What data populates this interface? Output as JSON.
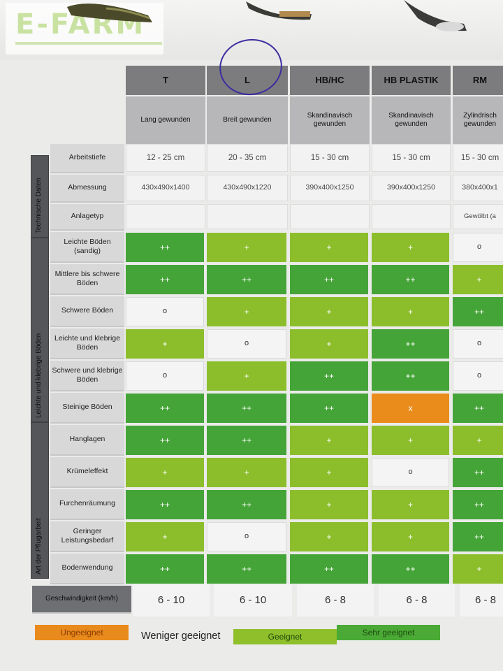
{
  "logo": {
    "text": "E-FARM"
  },
  "columns": [
    {
      "code": "T",
      "type": "Lang gewunden"
    },
    {
      "code": "L",
      "type": "Breit gewunden"
    },
    {
      "code": "HB/HC",
      "type": "Skandinavisch\ngewunden"
    },
    {
      "code": "HB PLASTIK",
      "type": "Skandinavisch\ngewunden"
    },
    {
      "code": "RM",
      "type": "Zylindrisch\ngewunden"
    }
  ],
  "groups": {
    "technical": "Technische Daten",
    "soils": "Leichte und klebrige Böden",
    "ploughing": "Art der Pflugarbeit"
  },
  "tech_rows": [
    {
      "label": "Arbeitstiefe",
      "values": [
        "12 - 25 cm",
        "20 - 35 cm",
        "15 - 30 cm",
        "15 - 30 cm",
        "15 - 30 cm"
      ]
    },
    {
      "label": "Abmessung",
      "values": [
        "430x490x1400",
        "430x490x1220",
        "390x400x1250",
        "390x400x1250",
        "380x400x1"
      ]
    },
    {
      "label": "Anlagetyp",
      "values": [
        "",
        "",
        "",
        "",
        "Gewölbt (a"
      ]
    }
  ],
  "rating_rows": [
    {
      "label": "Leichte Böden\n(sandig)",
      "ratings": [
        "++",
        "+",
        "+",
        "+",
        "o"
      ]
    },
    {
      "label": "Mittlere bis schwere\nBöden",
      "ratings": [
        "++",
        "++",
        "++",
        "++",
        "+"
      ]
    },
    {
      "label": "Schwere Böden",
      "ratings": [
        "o",
        "+",
        "+",
        "+",
        "++"
      ]
    },
    {
      "label": "Leichte und klebrige\nBöden",
      "ratings": [
        "+",
        "o",
        "+",
        "++",
        "o"
      ]
    },
    {
      "label": "Schwere und klebrige\nBöden",
      "ratings": [
        "o",
        "+",
        "++",
        "++",
        "o"
      ]
    },
    {
      "label": "Steinige Böden",
      "ratings": [
        "++",
        "++",
        "++",
        "x",
        "++"
      ]
    },
    {
      "label": "Hanglagen",
      "ratings": [
        "++",
        "++",
        "+",
        "+",
        "+"
      ]
    },
    {
      "label": "Krümeleffekt",
      "ratings": [
        "+",
        "+",
        "+",
        "o",
        "++"
      ]
    },
    {
      "label": "Furchenräumung",
      "ratings": [
        "++",
        "++",
        "+",
        "+",
        "++"
      ]
    },
    {
      "label": "Geringer\nLeistungsbedarf",
      "ratings": [
        "+",
        "o",
        "+",
        "+",
        "++"
      ]
    },
    {
      "label": "Bodenwendung",
      "ratings": [
        "++",
        "++",
        "++",
        "++",
        "+"
      ]
    }
  ],
  "speed_row": {
    "label": "Geschwindigkeit (km/h)",
    "values": [
      "6 - 10",
      "6 - 10",
      "6 - 8",
      "6 - 8",
      "6 - 8"
    ]
  },
  "legend": [
    {
      "label": "Ungeeignet",
      "color": "#e98a1c"
    },
    {
      "label": "Weniger geeignet",
      "color": "#ffffff"
    },
    {
      "label": "Geeignet",
      "color": "#8fbf2a"
    },
    {
      "label": "Sehr geeignet",
      "color": "#4aaa35"
    }
  ],
  "rating_colors": {
    "++": "#45a438",
    "+": "#8cbe2c",
    "o": "#f4f4f4",
    "x": "#ea8c1b"
  }
}
